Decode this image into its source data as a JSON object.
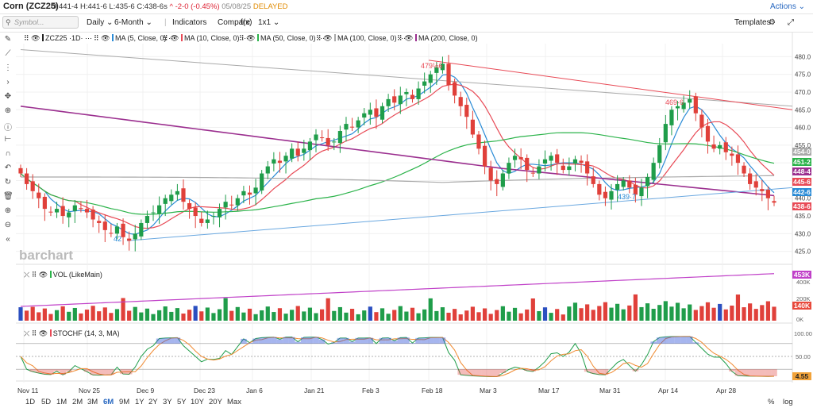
{
  "header": {
    "symbol": "Corn (ZCZ25)",
    "open": "O:441-4",
    "high": "H:441-6",
    "low": "L:435-6",
    "close": "C:438-6s",
    "change": "-2-0 (-0.45%)",
    "date": "05/08/25",
    "status": "DELAYED",
    "actions": "Actions"
  },
  "toolbar": {
    "search_placeholder": "Symbol...",
    "interval": "Daily",
    "range": "6-Month",
    "indicators": "Indicators",
    "compare": "Compare",
    "fx": "f(x)",
    "layout": "1x1",
    "templates": "Templates"
  },
  "indicators": [
    {
      "label": "ZCZ25 ·1D·",
      "color": "#222222"
    },
    {
      "label": "MA (5, Close, 0)",
      "color": "#2a8bd6"
    },
    {
      "label": "MA (10, Close, 0)",
      "color": "#e84a56"
    },
    {
      "label": "MA (50, Close, 0)",
      "color": "#2bb34a"
    },
    {
      "label": "MA (100, Close, 0)",
      "color": "#a9a9a9"
    },
    {
      "label": "MA (200, Close, 0)",
      "color": "#9b2f8f"
    }
  ],
  "watermark": "barchart",
  "price_labels": {
    "high": "479½6",
    "mid": "469·6",
    "low1": "439·7",
    "low2": "42"
  },
  "price_tags": [
    {
      "value": "454-0",
      "color": "#a9a9a9"
    },
    {
      "value": "451-2",
      "color": "#2bb34a"
    },
    {
      "value": "448-4",
      "color": "#9b2f8f"
    },
    {
      "value": "445-6",
      "color": "#e84a56"
    },
    {
      "value": "442-6",
      "color": "#2a8bd6"
    },
    {
      "value": "438-6",
      "color": "#e84a56"
    }
  ],
  "volume": {
    "label": "VOL (LikeMain)",
    "tags": [
      {
        "value": "453K",
        "color": "#c040c8"
      },
      {
        "value": "140K",
        "color": "#e84a3c"
      }
    ],
    "ticks": [
      "400K",
      "200K",
      "0K"
    ]
  },
  "stoch": {
    "label": "STOCHF (14, 3, MA)",
    "tag": "4.55",
    "ticks": [
      "100.00",
      "50.00",
      "0.00"
    ]
  },
  "chart_data": {
    "type": "candlestick",
    "y_ticks": [
      480,
      475,
      470,
      465,
      460,
      455,
      450,
      445,
      440,
      435,
      430,
      425
    ],
    "ylim": [
      422,
      483
    ],
    "x_labels": [
      "Nov 11",
      "Nov 25",
      "Dec 9",
      "Dec 23",
      "Jan 6",
      "Jan 21",
      "Feb 3",
      "Feb 18",
      "Mar 3",
      "Mar 17",
      "Mar 31",
      "Apr 14",
      "Apr 28"
    ],
    "close": [
      447,
      444,
      442,
      440,
      437,
      436,
      437,
      435,
      436,
      438,
      437,
      436,
      434,
      433,
      431,
      430,
      432,
      429,
      428,
      430,
      433,
      435,
      436,
      438,
      440,
      441,
      442,
      439,
      437,
      435,
      433,
      434,
      435,
      437,
      439,
      438,
      440,
      442,
      441,
      443,
      447,
      449,
      451,
      450,
      452,
      454,
      452,
      454,
      456,
      458,
      457,
      455,
      456,
      459,
      461,
      460,
      462,
      464,
      465,
      463,
      466,
      468,
      467,
      469,
      470,
      468,
      471,
      473,
      475,
      477,
      478,
      472,
      469,
      466,
      463,
      458,
      454,
      449,
      445,
      444,
      447,
      450,
      452,
      451,
      448,
      447,
      449,
      451,
      452,
      450,
      448,
      449,
      451,
      450,
      447,
      444,
      441,
      440,
      442,
      444,
      445,
      443,
      441,
      443,
      446,
      450,
      455,
      461,
      465,
      466,
      467,
      468,
      464,
      460,
      456,
      454,
      455,
      453,
      452,
      450,
      447,
      444,
      443,
      442,
      440,
      438.75
    ]
  },
  "range_buttons": [
    "1D",
    "5D",
    "1M",
    "2M",
    "3M",
    "6M",
    "9M",
    "1Y",
    "2Y",
    "3Y",
    "5Y",
    "10Y",
    "20Y",
    "Max"
  ],
  "selected_range": "6M",
  "bottom_right": [
    "%",
    "log"
  ]
}
